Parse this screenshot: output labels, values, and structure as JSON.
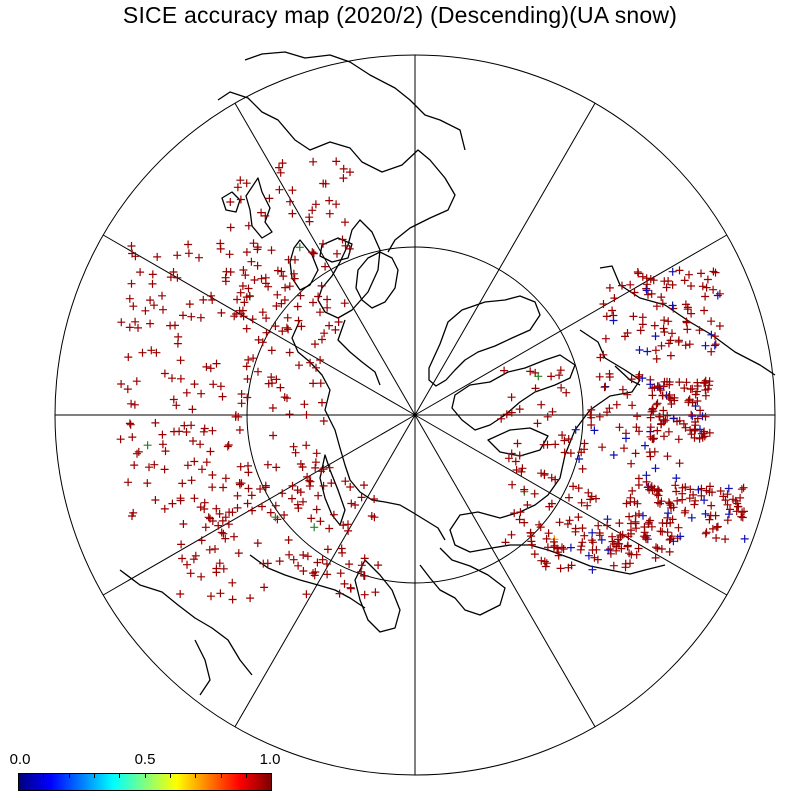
{
  "title": "SICE accuracy map (2020/2) (Descending)(UA snow)",
  "map": {
    "projection": "north-polar-stereographic",
    "graticule": {
      "meridian_step_deg": 30,
      "latitude_circles": [
        "equator",
        "60N"
      ]
    },
    "land_outline_color": "#000000"
  },
  "colorbar": {
    "min_label": "0.0",
    "mid_label": "0.5",
    "max_label": "1.0",
    "range": [
      0.0,
      1.0
    ],
    "colormap": "rainbow (dark blue to dark red)",
    "stops": [
      "#00007f",
      "#0000ff",
      "#007fff",
      "#00ffff",
      "#7fff7f",
      "#ffff00",
      "#ff7f00",
      "#ff0000",
      "#7f0000"
    ]
  },
  "markers": {
    "symbol": "plus",
    "dominant_accuracy": 1.0,
    "dominant_color": "#9b0000",
    "secondary_colors": [
      "#1010b0",
      "#2a7f2a",
      "#ff8c00"
    ]
  }
}
